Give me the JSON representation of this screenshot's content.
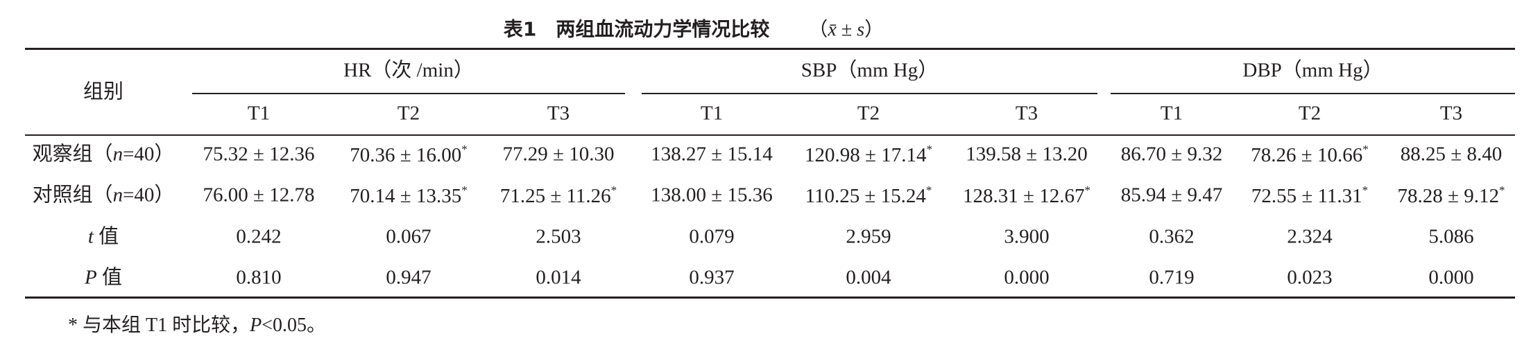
{
  "title": {
    "number": "表1",
    "text": "两组血流动力学情况比较",
    "note": [
      "（",
      "x̄",
      " ± ",
      "s",
      "）"
    ]
  },
  "table": {
    "row_header": "组别",
    "groups": [
      "HR（次 /min）",
      "SBP（mm Hg）",
      "DBP（mm Hg）"
    ],
    "subheaders": [
      "T1",
      "T2",
      "T3",
      "T1",
      "T2",
      "T3",
      "T1",
      "T2",
      "T3"
    ],
    "rows": [
      {
        "label": [
          "观察组（",
          "n",
          "=40）"
        ],
        "cells": [
          [
            "75.32 ± 12.36"
          ],
          [
            "70.36 ± 16.00",
            "*"
          ],
          [
            "77.29 ± 10.30"
          ],
          [
            "138.27 ± 15.14"
          ],
          [
            "120.98 ± 17.14",
            "*"
          ],
          [
            "139.58 ± 13.20"
          ],
          [
            "86.70 ± 9.32"
          ],
          [
            "78.26 ± 10.66",
            "*"
          ],
          [
            "88.25 ± 8.40"
          ]
        ]
      },
      {
        "label": [
          "对照组（",
          "n",
          "=40）"
        ],
        "cells": [
          [
            "76.00 ± 12.78"
          ],
          [
            "70.14 ± 13.35",
            "*"
          ],
          [
            "71.25 ± 11.26",
            "*"
          ],
          [
            "138.00 ± 15.36"
          ],
          [
            "110.25 ± 15.24",
            "*"
          ],
          [
            "128.31 ± 12.67",
            "*"
          ],
          [
            "85.94 ± 9.47"
          ],
          [
            "72.55 ± 11.31",
            "*"
          ],
          [
            "78.28 ± 9.12",
            "*"
          ]
        ]
      },
      {
        "label": [
          "",
          "t",
          " 值"
        ],
        "cells": [
          [
            "0.242"
          ],
          [
            "0.067"
          ],
          [
            "2.503"
          ],
          [
            "0.079"
          ],
          [
            "2.959"
          ],
          [
            "3.900"
          ],
          [
            "0.362"
          ],
          [
            "2.324"
          ],
          [
            "5.086"
          ]
        ]
      },
      {
        "label": [
          "",
          "P",
          " 值"
        ],
        "cells": [
          [
            "0.810"
          ],
          [
            "0.947"
          ],
          [
            "0.014"
          ],
          [
            "0.937"
          ],
          [
            "0.004"
          ],
          [
            "0.000"
          ],
          [
            "0.719"
          ],
          [
            "0.023"
          ],
          [
            "0.000"
          ]
        ]
      }
    ]
  },
  "footnote": [
    "* 与本组 T1 时比较，",
    "P",
    "<0.05。"
  ]
}
